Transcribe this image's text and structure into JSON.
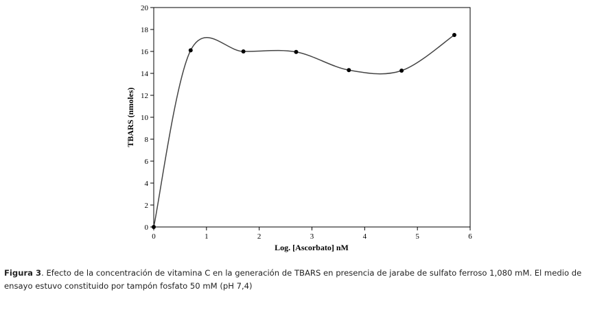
{
  "chart_data": {
    "type": "line",
    "xlabel": "Log. [Ascorbato] nM",
    "ylabel": "TBARS (nmoles)",
    "xlim": [
      0,
      6
    ],
    "ylim": [
      0,
      20
    ],
    "x_ticks": [
      "0",
      "1",
      "2",
      "3",
      "4",
      "5",
      "6"
    ],
    "y_ticks": [
      "0",
      "2",
      "4",
      "6",
      "8",
      "10",
      "12",
      "14",
      "16",
      "18",
      "20"
    ],
    "grid": false,
    "smooth": true,
    "series": [
      {
        "x": [
          0,
          0.7,
          1.7,
          2.7,
          3.7,
          4.7,
          5.7
        ],
        "y": [
          0,
          16.1,
          16.0,
          15.95,
          14.3,
          14.25,
          17.5
        ]
      }
    ]
  },
  "caption": {
    "label": "Figura 3",
    "text": ". Efecto de la concentración de vitamina C en la generación de TBARS en presencia de jarabe de sulfato ferroso 1,080 mM. El medio de ensayo estuvo constituido por tampón fosfato 50 mM (pH 7,4)"
  }
}
